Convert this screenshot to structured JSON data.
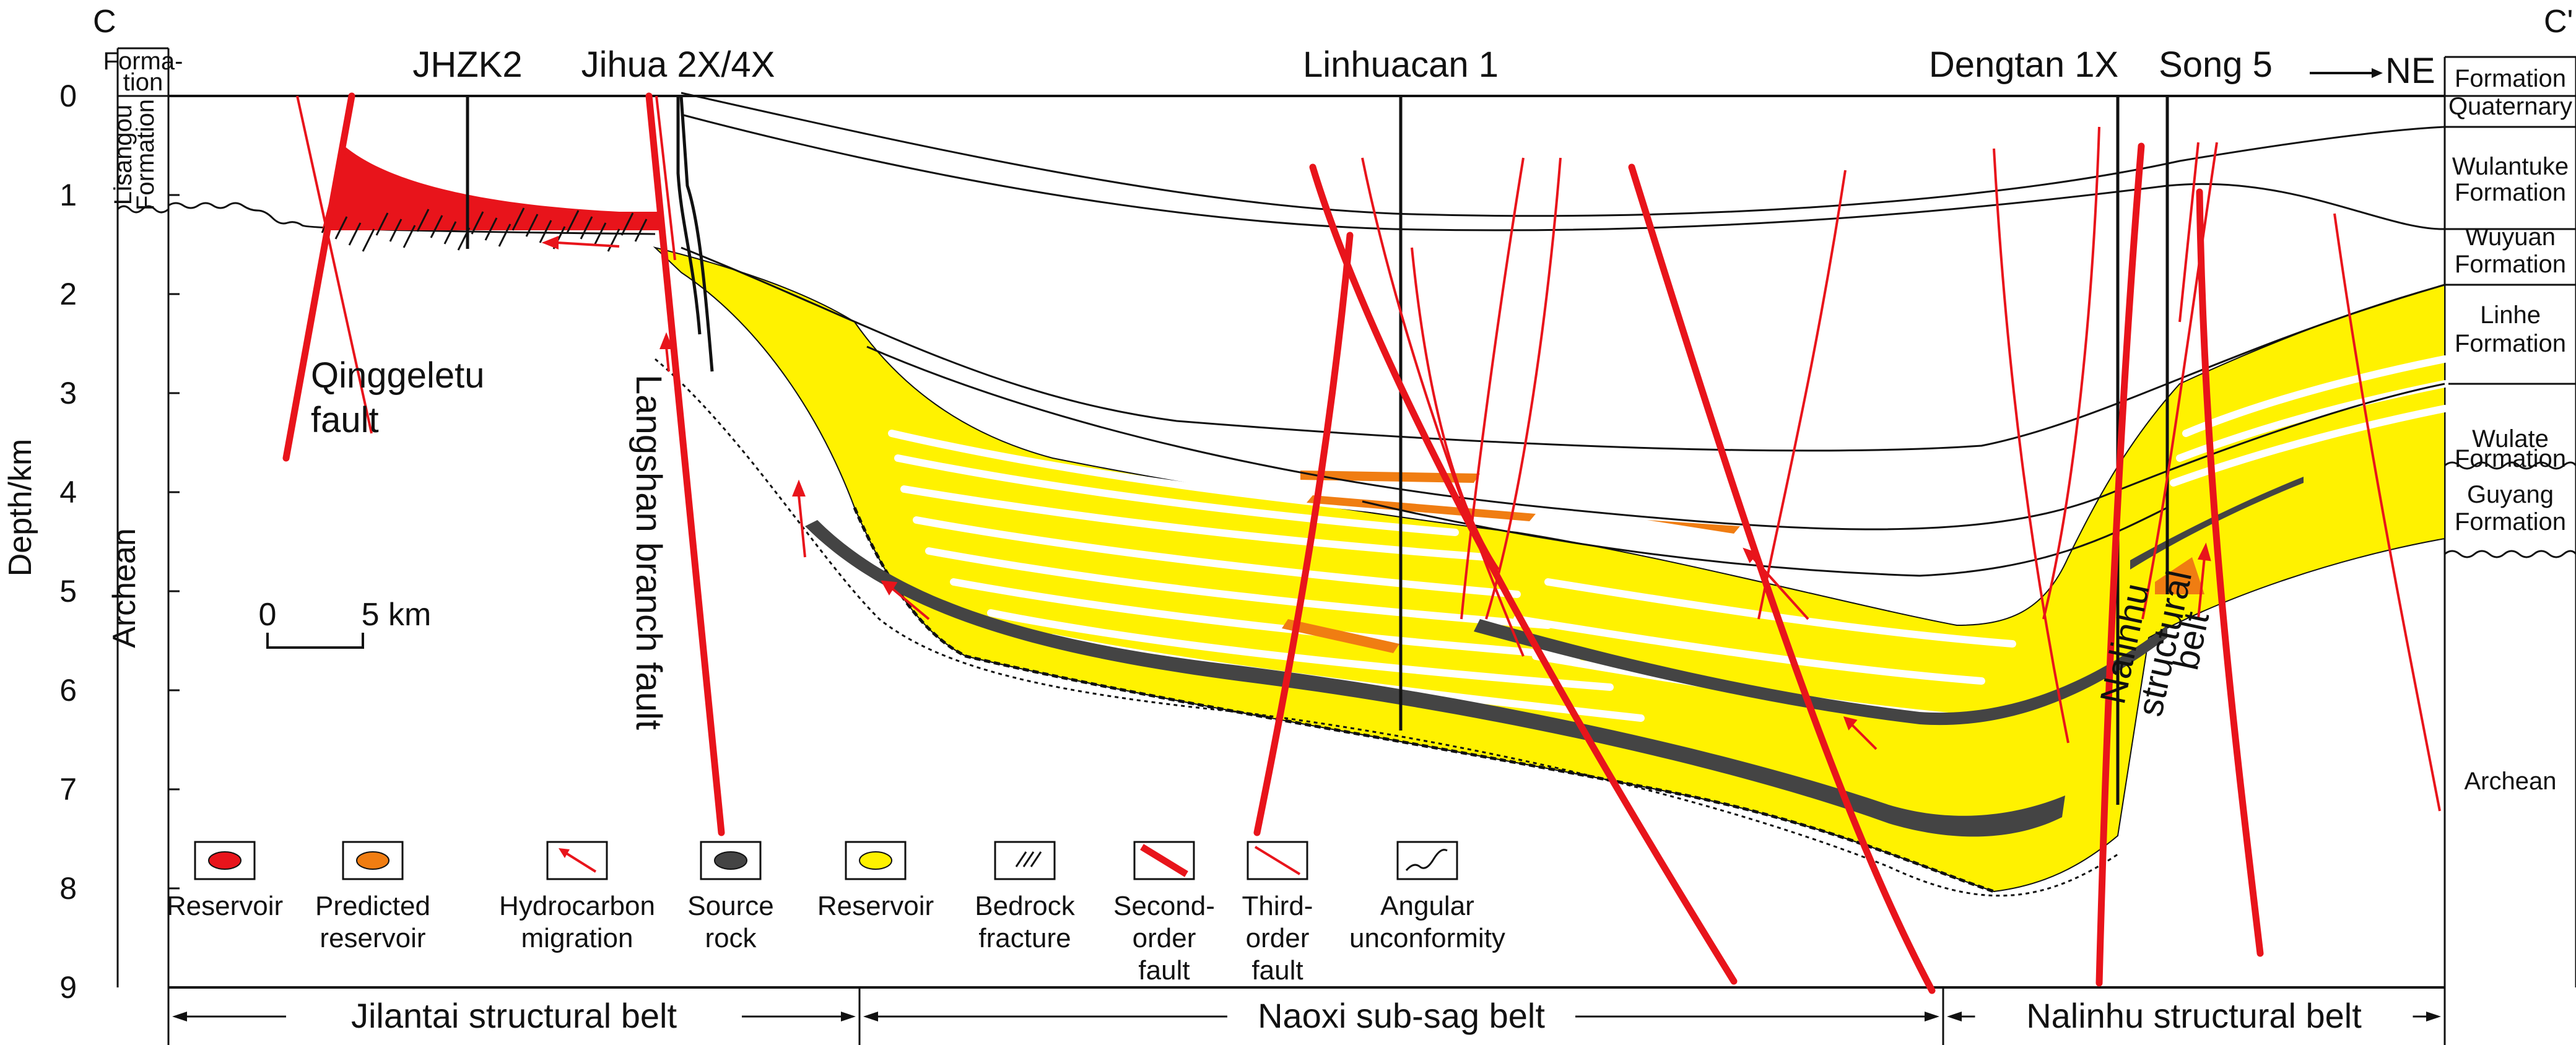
{
  "corners": {
    "left": "C",
    "right": "C'"
  },
  "direction": "NE",
  "wells": [
    "JHZK2",
    "Jihua 2X/4X",
    "Linhuacan 1",
    "Dengtan 1X",
    "Song 5"
  ],
  "axis": {
    "label": "Depth/km",
    "ticks": [
      "0",
      "1",
      "2",
      "3",
      "4",
      "5",
      "6",
      "7",
      "8",
      "9"
    ]
  },
  "left_column": {
    "header": [
      "Forma-",
      "tion"
    ],
    "formation": [
      "Lisangou",
      "Formation"
    ],
    "basement": "Archean"
  },
  "right_column": {
    "header": "Formation",
    "formations": [
      {
        "lines": [
          "Quaternary"
        ]
      },
      {
        "lines": [
          "Wulantuke",
          "Formation"
        ]
      },
      {
        "lines": [
          "Wuyuan",
          "Formation"
        ]
      },
      {
        "lines": [
          "Linhe",
          "Formation"
        ]
      },
      {
        "lines": [
          "Wulate",
          "Formation"
        ]
      },
      {
        "lines": [
          "Guyang",
          "Formation"
        ]
      },
      {
        "lines": [
          "Archean"
        ]
      }
    ]
  },
  "fault_labels": {
    "qinggeletu": [
      "Qinggeletu",
      "fault"
    ],
    "langshan": "Langshan branch fault",
    "nalinhu": [
      "Nalinhu",
      "structural",
      "belt"
    ]
  },
  "scale_bar": {
    "start": "0",
    "end": "5 km"
  },
  "legend": [
    {
      "key": "reservoir-red",
      "lines": [
        "Reservoir"
      ],
      "color": "#e8141b"
    },
    {
      "key": "predicted-reservoir",
      "lines": [
        "Predicted",
        "reservoir"
      ],
      "color": "#f07d12"
    },
    {
      "key": "hydrocarbon-migration",
      "lines": [
        "Hydrocarbon",
        "migration"
      ],
      "color": "#e8141b"
    },
    {
      "key": "source-rock",
      "lines": [
        "Source",
        "rock"
      ],
      "color": "#444444"
    },
    {
      "key": "reservoir-yellow",
      "lines": [
        "Reservoir"
      ],
      "color": "#fff200"
    },
    {
      "key": "bedrock-fracture",
      "lines": [
        "Bedrock",
        "fracture"
      ],
      "color": "#111111"
    },
    {
      "key": "second-order-fault",
      "lines": [
        "Second-",
        "order",
        "fault"
      ],
      "color": "#e8141b"
    },
    {
      "key": "third-order-fault",
      "lines": [
        "Third-",
        "order",
        "fault"
      ],
      "color": "#e8141b"
    },
    {
      "key": "angular-unconformity",
      "lines": [
        "Angular",
        "unconformity"
      ],
      "color": "#111111"
    }
  ],
  "belts": [
    "Jilantai structural belt",
    "Naoxi sub-sag belt",
    "Nalinhu structural belt"
  ]
}
